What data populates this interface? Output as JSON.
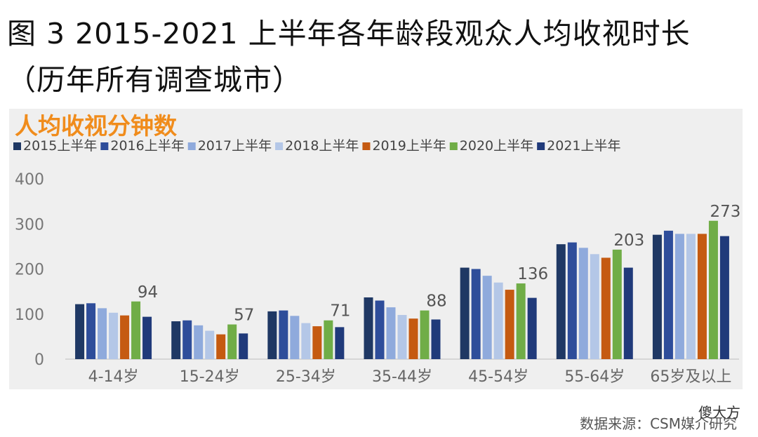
{
  "header": {
    "title_line1": "图 3 2015-2021 上半年各年龄段观众人均收视时长",
    "title_line2": "（历年所有调查城市）"
  },
  "footer": {
    "source": "数据来源：CSM媒介研究",
    "watermark": "傻大方"
  },
  "colors": {
    "orange_title": "#f08c1c",
    "s2015": "#1f3864",
    "s2016": "#2e4d9a",
    "s2017": "#8faadc",
    "s2018": "#b4c7e7",
    "s2019": "#c55a11",
    "s2020": "#70ad47",
    "s2021": "#203a7a"
  },
  "chart_data": {
    "type": "bar",
    "title": "人均收视分钟数",
    "xlabel": "",
    "ylabel": "",
    "ylim": [
      0,
      400
    ],
    "yticks": [
      0,
      100,
      200,
      300,
      400
    ],
    "grid": false,
    "legend_position": "top",
    "categories": [
      "4-14岁",
      "15-24岁",
      "25-34岁",
      "35-44岁",
      "45-54岁",
      "55-64岁",
      "65岁及以上"
    ],
    "series": [
      {
        "name": "2015上半年",
        "color": "#1f3864",
        "values": [
          122,
          84,
          106,
          137,
          203,
          255,
          276
        ]
      },
      {
        "name": "2016上半年",
        "color": "#2e4d9a",
        "values": [
          124,
          86,
          108,
          130,
          200,
          259,
          285
        ]
      },
      {
        "name": "2017上半年",
        "color": "#8faadc",
        "values": [
          113,
          75,
          96,
          115,
          185,
          247,
          278
        ]
      },
      {
        "name": "2018上半年",
        "color": "#b4c7e7",
        "values": [
          103,
          63,
          80,
          98,
          170,
          233,
          278
        ]
      },
      {
        "name": "2019上半年",
        "color": "#c55a11",
        "values": [
          97,
          55,
          73,
          90,
          154,
          225,
          278
        ]
      },
      {
        "name": "2020上半年",
        "color": "#70ad47",
        "values": [
          128,
          77,
          86,
          108,
          168,
          243,
          307
        ]
      },
      {
        "name": "2021上半年",
        "color": "#203a7a",
        "values": [
          94,
          57,
          71,
          88,
          136,
          203,
          273
        ]
      }
    ],
    "data_labels": [
      {
        "series": "2021上半年",
        "values": [
          "94",
          "57",
          "71",
          "88",
          "136",
          "203",
          "273"
        ]
      }
    ]
  }
}
